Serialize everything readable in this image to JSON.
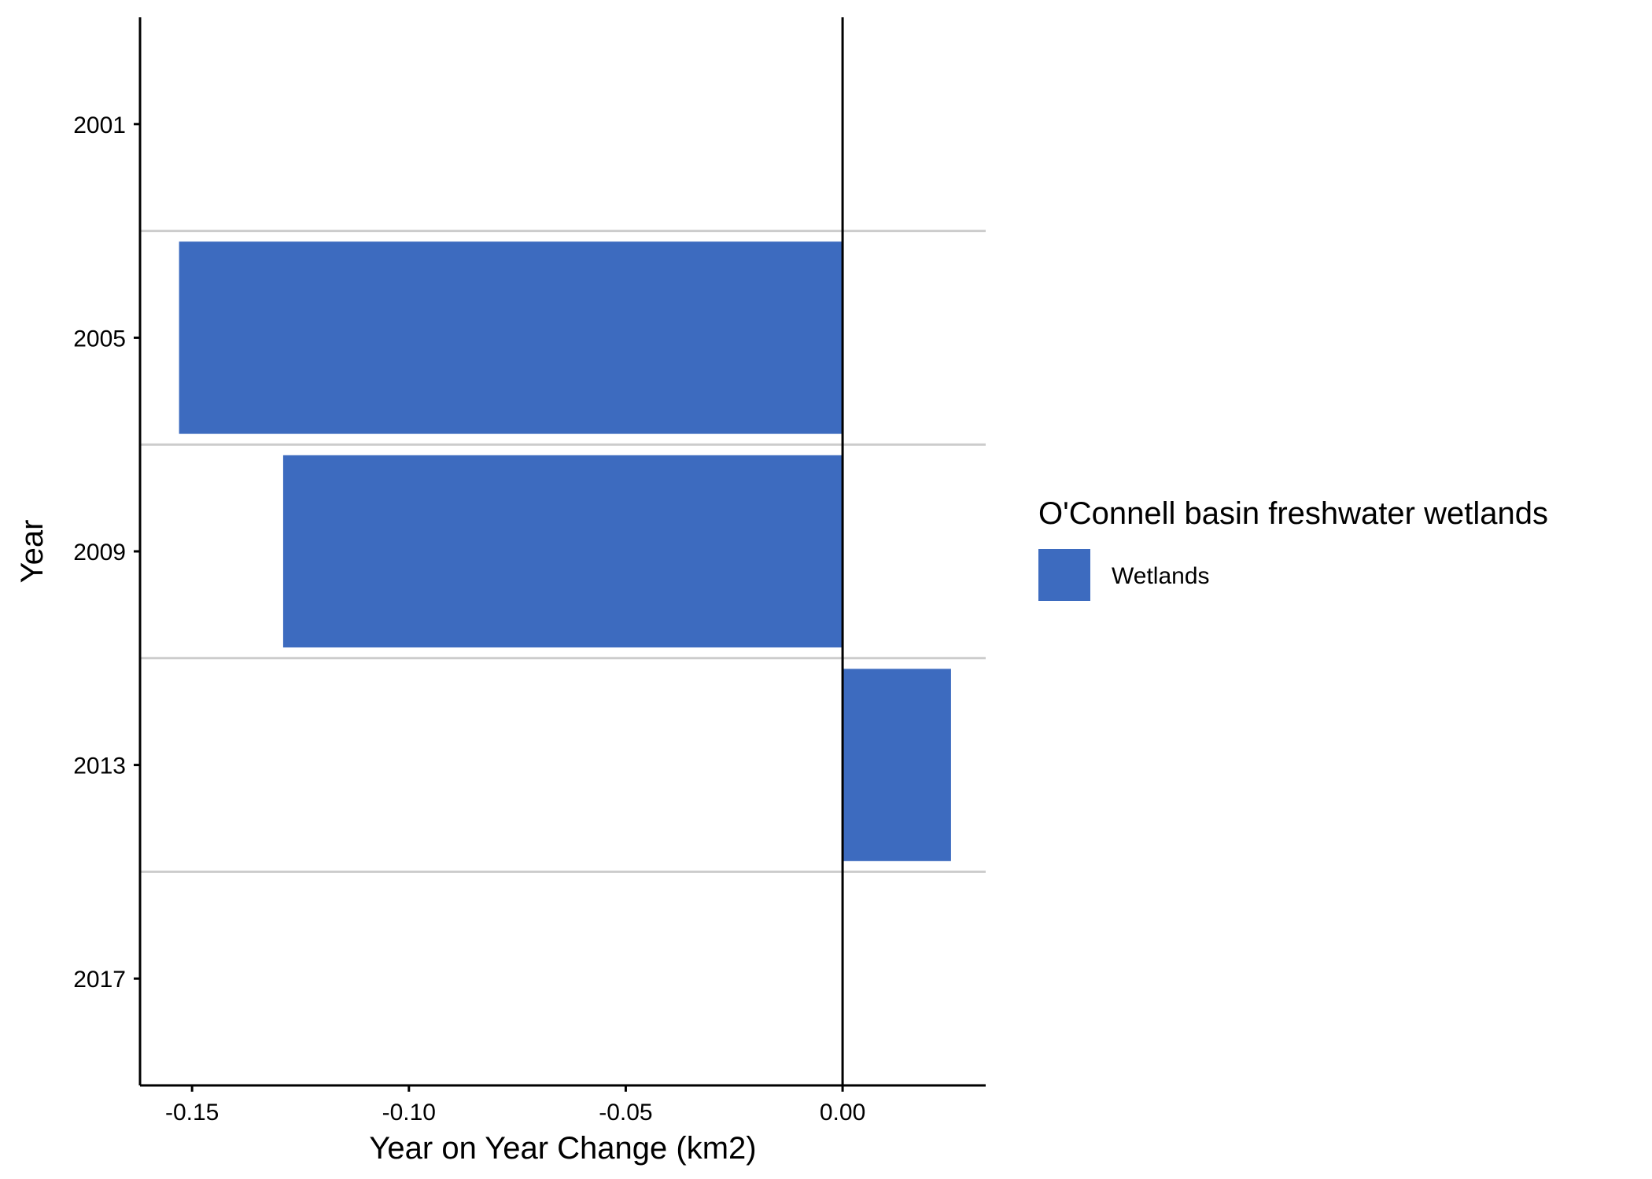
{
  "chart_data": {
    "type": "bar",
    "orientation": "horizontal",
    "categories": [
      "2001",
      "2005",
      "2009",
      "2013",
      "2017"
    ],
    "series": [
      {
        "name": "Wetlands",
        "values": [
          null,
          -0.153,
          -0.129,
          0.025,
          null
        ]
      }
    ],
    "xlabel": "Year on Year Change (km2)",
    "ylabel": "Year",
    "xlim": [
      -0.162,
      0.033
    ],
    "xticks": [
      -0.15,
      -0.1,
      -0.05,
      0.0
    ],
    "xtick_labels": [
      "-0.15",
      "-0.10",
      "-0.05",
      "0.00"
    ],
    "legend": {
      "title": "O'Connell basin freshwater wetlands",
      "placement": "right",
      "items": [
        {
          "label": "Wetlands",
          "color": "#3d6bbf"
        }
      ]
    },
    "colors": {
      "bar": "#3d6bbf",
      "grid": "#cccccc",
      "axis": "#000000",
      "zero_line": "#000000"
    },
    "grid": "horizontal lines between categories"
  }
}
